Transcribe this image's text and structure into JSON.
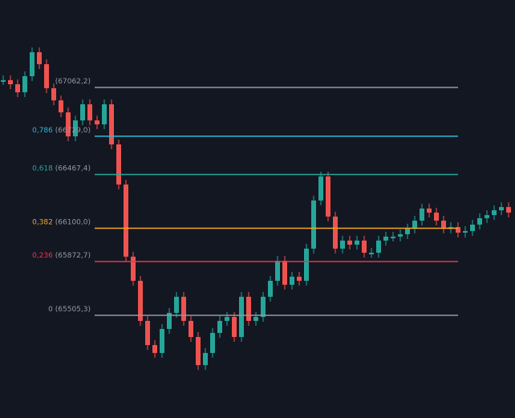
{
  "fib": {
    "levels": [
      {
        "label": "(67062,2)",
        "value": 67062.2,
        "color": "#9598a1"
      },
      {
        "ratio": "0,786",
        "label": "(66729,0)",
        "value": 66729.0,
        "color": "#2fb8d6"
      },
      {
        "ratio": "0,618",
        "label": "(66467,4)",
        "value": 66467.4,
        "color": "#26a69a"
      },
      {
        "ratio": "0,382",
        "label": "(66100,0)",
        "value": 66100.0,
        "color": "#f5a623"
      },
      {
        "ratio": "0,236",
        "label": "(65872,7)",
        "value": 65872.7,
        "color": "#e8374f"
      },
      {
        "ratio": "0",
        "label": "(65505,3)",
        "value": 65505.3,
        "color": "#9598a1"
      }
    ]
  },
  "candles": {
    "up_color": "#26a69a",
    "down_color": "#ef5350",
    "closes": [
      67112,
      67084,
      67029,
      67139,
      67303,
      67221,
      67057,
      66974,
      66892,
      66728,
      66837,
      66947,
      66837,
      66810,
      66947,
      66673,
      66399,
      65906,
      65741,
      65467,
      65302,
      65248,
      65412,
      65522,
      65632,
      65467,
      65357,
      65165,
      65248,
      65385,
      65467,
      65494,
      65357,
      65632,
      65467,
      65494,
      65632,
      65741,
      65878,
      65714,
      65769,
      65741,
      65961,
      66290,
      66454,
      66180,
      65961,
      66016,
      65988,
      66016,
      65933,
      65933,
      66016,
      66043,
      66043,
      66059,
      66098,
      66152,
      66235,
      66207,
      66152,
      66098,
      66108,
      66070,
      66081,
      66125,
      66169,
      66190,
      66223,
      66245,
      66207
    ]
  }
}
